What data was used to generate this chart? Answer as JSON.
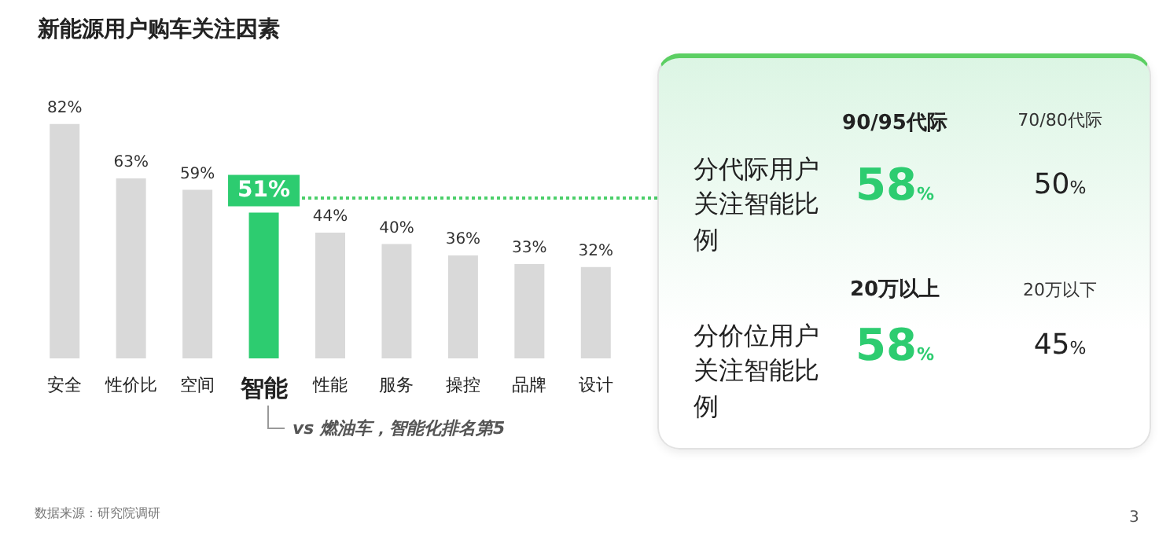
{
  "chart_data": [
    {
      "type": "bar",
      "title": "新能源用户购车关注因素",
      "categories": [
        "安全",
        "性价比",
        "空间",
        "智能",
        "性能",
        "服务",
        "操控",
        "品牌",
        "设计"
      ],
      "values": [
        82,
        63,
        59,
        51,
        44,
        40,
        36,
        33,
        32
      ],
      "colors": [
        "#d9d9d9",
        "#d9d9d9",
        "#d9d9d9",
        "#2dcc70",
        "#d9d9d9",
        "#d9d9d9",
        "#d9d9d9",
        "#d9d9d9",
        "#d9d9d9"
      ],
      "value_labels": [
        "82%",
        "63%",
        "59%",
        "51%",
        "44%",
        "40%",
        "36%",
        "33%",
        "32%"
      ],
      "annotations": [
        "vs 燃油车，智能化排名第5",
        "数据来源：研究院调研",
        "3"
      ]
    },
    {
      "type": "other",
      "annotations": [
        "90/95代际",
        "70/80代际",
        "分代际用户关注智能比例",
        "58%",
        "50%",
        "20万以上",
        "20万以下",
        "分价位用户关注智能比例",
        "58%",
        "45%"
      ]
    }
  ]
}
